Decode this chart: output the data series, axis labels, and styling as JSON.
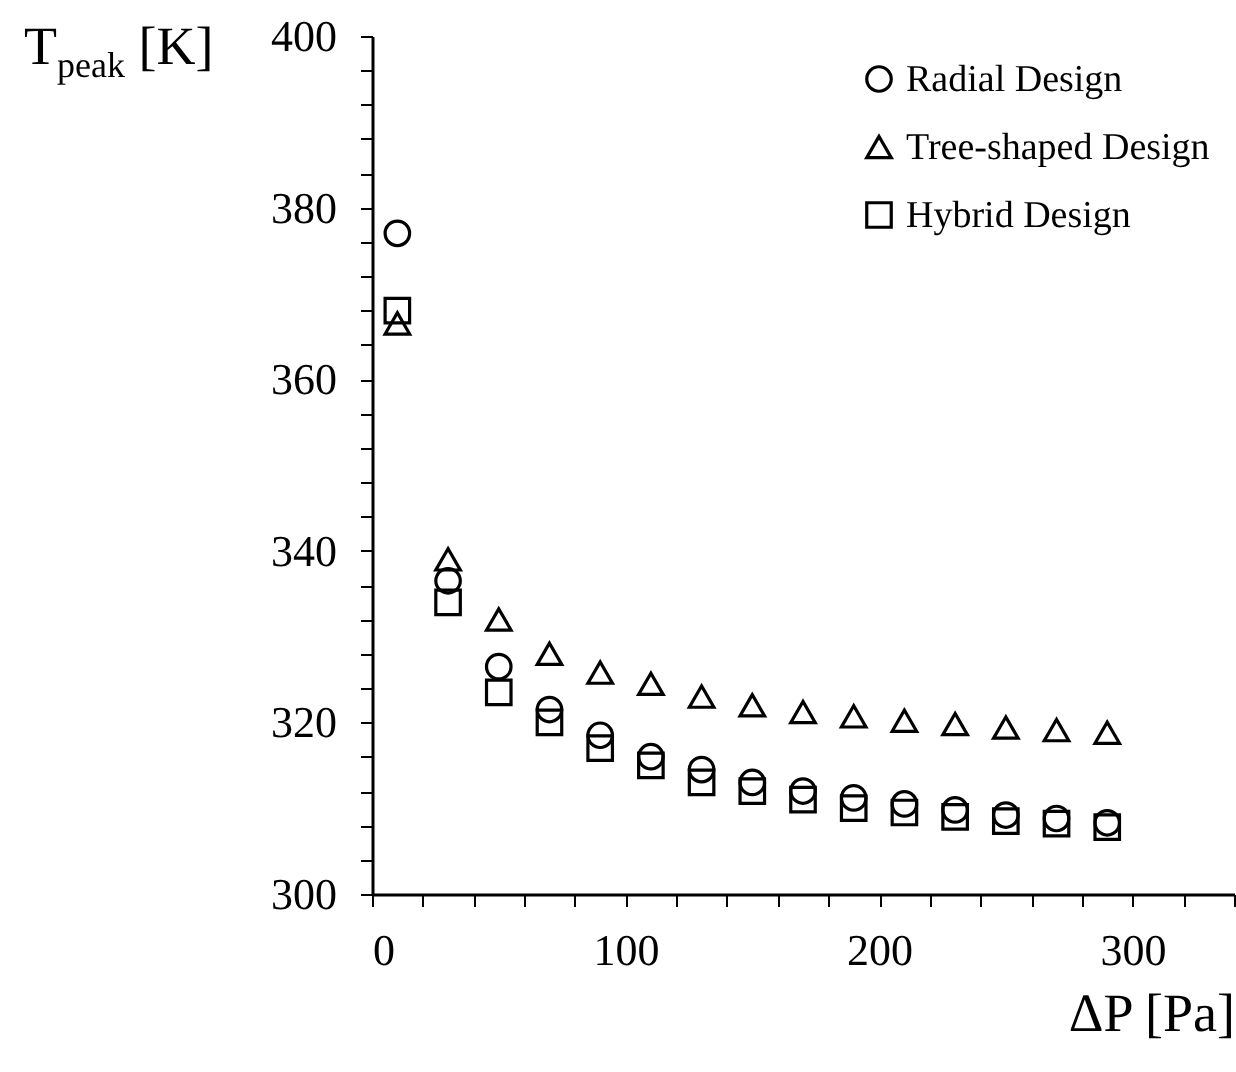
{
  "chart_data": {
    "type": "scatter",
    "xlabel": "ΔP [Pa]",
    "ylabel": "T$_{peak}$ [K]",
    "x": [
      10,
      30,
      50,
      70,
      90,
      110,
      130,
      150,
      170,
      190,
      210,
      230,
      250,
      270,
      290
    ],
    "series": [
      {
        "name": "Radial Design",
        "color": "#000000",
        "marker": "circle",
        "values": [
          377,
          336.5,
          326.5,
          321.5,
          318.5,
          316,
          314.5,
          313,
          312,
          311.2,
          310.5,
          309.8,
          309.2,
          308.8,
          308.3
        ]
      },
      {
        "name": "Tree-shaped Design",
        "color": "#000000",
        "marker": "triangle",
        "values": [
          366.5,
          339,
          332,
          328,
          325.8,
          324.5,
          323,
          322,
          321.2,
          320.7,
          320.2,
          319.8,
          319.4,
          319.1,
          318.8
        ]
      },
      {
        "name": "Hybrid Design",
        "color": "#000000",
        "marker": "square",
        "values": [
          368,
          334,
          323.5,
          320,
          317,
          315,
          313,
          312,
          311,
          310,
          309.5,
          309,
          308.5,
          308.2,
          307.8
        ]
      }
    ],
    "xlim": [
      0,
      340
    ],
    "xticks": [
      0,
      {
        "value": 20,
        "label": null
      },
      {
        "value": 40,
        "label": null
      },
      {
        "value": 60,
        "label": null
      },
      {
        "value": 80,
        "label": null
      },
      100,
      {
        "value": 120,
        "label": null
      },
      {
        "value": 140,
        "label": null
      },
      {
        "value": 160,
        "label": null
      },
      {
        "value": 180,
        "label": null
      },
      200,
      {
        "value": 220,
        "label": null
      },
      {
        "value": 240,
        "label": null
      },
      {
        "value": 260,
        "label": null
      },
      {
        "value": 280,
        "label": null
      },
      300,
      {
        "value": 320,
        "label": null
      },
      {
        "value": 340,
        "label": null
      }
    ],
    "ylim": [
      300,
      400
    ],
    "yticks": [
      300,
      {
        "value": 304,
        "label": null
      },
      {
        "value": 308,
        "label": null
      },
      {
        "value": 312,
        "label": null
      },
      {
        "value": 316,
        "label": null
      },
      320,
      {
        "value": 324,
        "label": null
      },
      {
        "value": 328,
        "label": null
      },
      {
        "value": 332,
        "label": null
      },
      {
        "value": 336,
        "label": null
      },
      340,
      {
        "value": 344,
        "label": null
      },
      {
        "value": 348,
        "label": null
      },
      {
        "value": 352,
        "label": null
      },
      {
        "value": 356,
        "label": null
      },
      360,
      {
        "value": 364,
        "label": null
      },
      {
        "value": 368,
        "label": null
      },
      {
        "value": 372,
        "label": null
      },
      {
        "value": 376,
        "label": null
      },
      380,
      {
        "value": 384,
        "label": null
      },
      {
        "value": 388,
        "label": null
      },
      {
        "value": 392,
        "label": null
      },
      {
        "value": 396,
        "label": null
      },
      400
    ],
    "grid": false,
    "legend": "top right"
  }
}
